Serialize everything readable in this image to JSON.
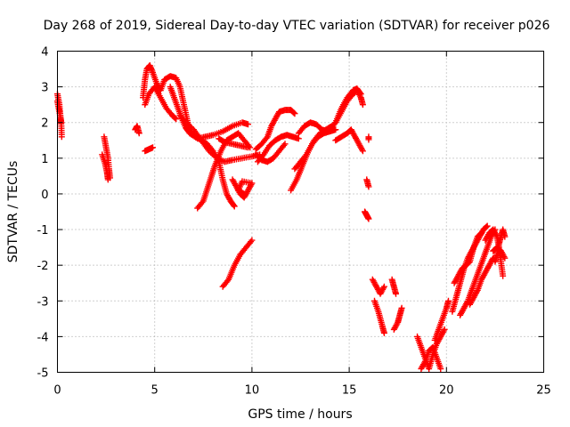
{
  "chart_data": {
    "type": "scatter",
    "title": "Day 268 of 2019, Sidereal Day-to-day VTEC variation (SDTVAR) for receiver p026",
    "xlabel": "GPS time / hours",
    "ylabel": "SDTVAR / TECUs",
    "xlim": [
      0,
      25
    ],
    "ylim": [
      -5,
      4
    ],
    "xticks": [
      0,
      5,
      10,
      15,
      20,
      25
    ],
    "yticks": [
      -5,
      -4,
      -3,
      -2,
      -1,
      0,
      1,
      2,
      3,
      4
    ],
    "grid": true,
    "marker": "+",
    "series": [
      {
        "name": "SDTVAR",
        "color": "#ff0000",
        "tracks": [
          [
            [
              0.0,
              2.8
            ],
            [
              0.1,
              2.5
            ],
            [
              0.15,
              2.2
            ],
            [
              0.2,
              1.9
            ],
            [
              0.22,
              1.6
            ]
          ],
          [
            [
              0.0,
              2.6
            ],
            [
              0.1,
              2.3
            ],
            [
              0.2,
              2.0
            ]
          ],
          [
            [
              2.4,
              1.6
            ],
            [
              2.5,
              1.3
            ],
            [
              2.6,
              1.0
            ],
            [
              2.65,
              0.7
            ],
            [
              2.7,
              0.45
            ]
          ],
          [
            [
              2.3,
              1.1
            ],
            [
              2.45,
              0.85
            ],
            [
              2.55,
              0.6
            ],
            [
              2.6,
              0.4
            ]
          ],
          [
            [
              4.0,
              1.8
            ],
            [
              4.1,
              1.9
            ],
            [
              4.2,
              1.7
            ]
          ],
          [
            [
              4.5,
              1.2
            ],
            [
              4.7,
              1.25
            ],
            [
              4.9,
              1.3
            ]
          ],
          [
            [
              4.4,
              2.7
            ],
            [
              4.5,
              3.2
            ],
            [
              4.6,
              3.5
            ],
            [
              4.75,
              3.6
            ],
            [
              4.9,
              3.4
            ],
            [
              5.1,
              3.1
            ],
            [
              5.3,
              2.9
            ],
            [
              5.5,
              3.2
            ],
            [
              5.8,
              3.3
            ],
            [
              6.1,
              3.25
            ],
            [
              6.3,
              3.0
            ],
            [
              6.5,
              2.5
            ],
            [
              6.7,
              2.0
            ],
            [
              6.9,
              1.7
            ]
          ],
          [
            [
              4.5,
              2.5
            ],
            [
              4.7,
              2.8
            ],
            [
              5.0,
              3.0
            ],
            [
              5.3,
              2.7
            ],
            [
              5.6,
              2.4
            ],
            [
              5.9,
              2.2
            ],
            [
              6.1,
              2.1
            ]
          ],
          [
            [
              5.8,
              3.0
            ],
            [
              6.0,
              2.7
            ],
            [
              6.2,
              2.4
            ],
            [
              6.4,
              2.1
            ],
            [
              6.6,
              1.85
            ],
            [
              6.8,
              1.7
            ],
            [
              7.2,
              1.55
            ],
            [
              7.6,
              1.6
            ],
            [
              8.0,
              1.65
            ],
            [
              8.5,
              1.75
            ],
            [
              9.0,
              1.9
            ],
            [
              9.5,
              2.0
            ],
            [
              9.8,
              1.95
            ]
          ],
          [
            [
              6.3,
              2.2
            ],
            [
              6.6,
              2.0
            ],
            [
              7.0,
              1.8
            ],
            [
              7.4,
              1.5
            ],
            [
              7.8,
              1.2
            ],
            [
              8.2,
              1.0
            ],
            [
              8.6,
              0.9
            ],
            [
              9.0,
              0.95
            ],
            [
              9.5,
              1.0
            ],
            [
              10.0,
              1.05
            ],
            [
              10.4,
              1.1
            ]
          ],
          [
            [
              6.8,
              1.7
            ],
            [
              7.1,
              1.6
            ],
            [
              7.4,
              1.5
            ],
            [
              7.7,
              1.4
            ],
            [
              8.0,
              1.2
            ],
            [
              8.3,
              0.9
            ],
            [
              8.5,
              0.4
            ],
            [
              8.7,
              0.0
            ],
            [
              8.9,
              -0.2
            ],
            [
              9.1,
              -0.35
            ]
          ],
          [
            [
              7.2,
              -0.4
            ],
            [
              7.5,
              -0.2
            ],
            [
              7.8,
              0.3
            ],
            [
              8.1,
              0.8
            ],
            [
              8.4,
              1.2
            ],
            [
              8.7,
              1.5
            ],
            [
              9.0,
              1.6
            ],
            [
              9.3,
              1.7
            ],
            [
              9.6,
              1.5
            ],
            [
              9.9,
              1.3
            ]
          ],
          [
            [
              8.3,
              1.55
            ],
            [
              8.6,
              1.45
            ],
            [
              9.0,
              1.4
            ],
            [
              9.4,
              1.35
            ],
            [
              9.8,
              1.3
            ]
          ],
          [
            [
              9.0,
              0.4
            ],
            [
              9.2,
              0.2
            ],
            [
              9.4,
              0.0
            ],
            [
              9.6,
              -0.1
            ],
            [
              9.8,
              0.1
            ],
            [
              10.0,
              0.3
            ],
            [
              9.5,
              0.35
            ],
            [
              9.3,
              0.1
            ],
            [
              9.6,
              0.0
            ]
          ],
          [
            [
              8.5,
              -2.6
            ],
            [
              8.8,
              -2.4
            ],
            [
              9.1,
              -2.0
            ],
            [
              9.4,
              -1.7
            ],
            [
              9.7,
              -1.5
            ],
            [
              10.0,
              -1.3
            ]
          ],
          [
            [
              10.2,
              1.25
            ],
            [
              10.5,
              1.4
            ],
            [
              10.8,
              1.6
            ],
            [
              11.0,
              1.9
            ],
            [
              11.2,
              2.1
            ],
            [
              11.4,
              2.3
            ],
            [
              11.7,
              2.35
            ],
            [
              12.0,
              2.35
            ],
            [
              12.2,
              2.25
            ]
          ],
          [
            [
              10.3,
              0.9
            ],
            [
              10.6,
              1.1
            ],
            [
              10.9,
              1.35
            ],
            [
              11.2,
              1.5
            ],
            [
              11.5,
              1.6
            ],
            [
              11.8,
              1.65
            ],
            [
              12.1,
              1.6
            ],
            [
              12.4,
              1.55
            ]
          ],
          [
            [
              10.2,
              1.1
            ],
            [
              10.5,
              0.95
            ],
            [
              10.8,
              0.9
            ],
            [
              11.1,
              1.0
            ],
            [
              11.4,
              1.2
            ],
            [
              11.7,
              1.4
            ]
          ],
          [
            [
              12.0,
              0.1
            ],
            [
              12.3,
              0.4
            ],
            [
              12.6,
              0.8
            ],
            [
              12.9,
              1.2
            ],
            [
              13.2,
              1.5
            ],
            [
              13.5,
              1.7
            ],
            [
              13.8,
              1.8
            ],
            [
              14.1,
              1.9
            ]
          ],
          [
            [
              12.2,
              0.7
            ],
            [
              12.5,
              0.9
            ],
            [
              12.8,
              1.1
            ],
            [
              13.1,
              1.4
            ],
            [
              13.4,
              1.6
            ],
            [
              13.7,
              1.7
            ],
            [
              14.0,
              1.75
            ],
            [
              14.3,
              1.8
            ]
          ],
          [
            [
              12.4,
              1.7
            ],
            [
              12.7,
              1.9
            ],
            [
              13.0,
              2.0
            ],
            [
              13.3,
              1.95
            ],
            [
              13.6,
              1.8
            ],
            [
              13.9,
              1.75
            ]
          ],
          [
            [
              14.0,
              1.8
            ],
            [
              14.3,
              2.0
            ],
            [
              14.6,
              2.3
            ],
            [
              14.9,
              2.6
            ],
            [
              15.2,
              2.8
            ],
            [
              15.4,
              2.9
            ],
            [
              15.6,
              2.7
            ],
            [
              15.7,
              2.5
            ]
          ],
          [
            [
              14.3,
              1.5
            ],
            [
              14.6,
              1.6
            ],
            [
              14.9,
              1.7
            ],
            [
              15.1,
              1.8
            ],
            [
              15.3,
              1.6
            ],
            [
              15.5,
              1.4
            ],
            [
              15.7,
              1.2
            ]
          ],
          [
            [
              14.3,
              2.0
            ],
            [
              14.6,
              2.4
            ],
            [
              14.9,
              2.7
            ],
            [
              15.2,
              2.9
            ],
            [
              15.4,
              2.95
            ],
            [
              15.6,
              2.8
            ]
          ],
          [
            [
              16.0,
              1.6
            ]
          ],
          [
            [
              15.9,
              0.4
            ],
            [
              16.0,
              0.2
            ]
          ],
          [
            [
              15.8,
              -0.5
            ],
            [
              15.9,
              -0.6
            ],
            [
              16.0,
              -0.7
            ]
          ],
          [
            [
              16.2,
              -2.4
            ],
            [
              16.4,
              -2.6
            ],
            [
              16.6,
              -2.8
            ],
            [
              16.8,
              -2.6
            ]
          ],
          [
            [
              16.3,
              -3.0
            ],
            [
              16.5,
              -3.3
            ],
            [
              16.7,
              -3.7
            ],
            [
              16.8,
              -3.9
            ]
          ],
          [
            [
              17.2,
              -2.4
            ],
            [
              17.3,
              -2.6
            ],
            [
              17.4,
              -2.8
            ]
          ],
          [
            [
              17.3,
              -3.8
            ],
            [
              17.5,
              -3.6
            ],
            [
              17.6,
              -3.4
            ],
            [
              17.7,
              -3.2
            ]
          ],
          [
            [
              18.5,
              -4.0
            ],
            [
              18.7,
              -4.3
            ],
            [
              18.9,
              -4.6
            ],
            [
              19.1,
              -4.9
            ],
            [
              19.3,
              -4.5
            ],
            [
              19.5,
              -4.2
            ],
            [
              19.7,
              -4.0
            ],
            [
              19.9,
              -3.8
            ]
          ],
          [
            [
              18.7,
              -4.9
            ],
            [
              18.9,
              -4.7
            ],
            [
              19.1,
              -4.4
            ],
            [
              19.3,
              -4.3
            ],
            [
              19.5,
              -4.6
            ],
            [
              19.7,
              -4.9
            ]
          ],
          [
            [
              19.4,
              -4.1
            ],
            [
              19.6,
              -3.8
            ],
            [
              19.8,
              -3.5
            ],
            [
              20.0,
              -3.2
            ],
            [
              20.1,
              -3.0
            ]
          ],
          [
            [
              20.3,
              -3.3
            ],
            [
              20.5,
              -2.9
            ],
            [
              20.7,
              -2.5
            ],
            [
              20.9,
              -2.1
            ],
            [
              21.1,
              -1.8
            ],
            [
              21.3,
              -1.6
            ],
            [
              21.5,
              -1.4
            ],
            [
              21.7,
              -1.2
            ],
            [
              21.9,
              -1.0
            ],
            [
              22.1,
              -0.9
            ]
          ],
          [
            [
              20.4,
              -2.5
            ],
            [
              20.6,
              -2.3
            ],
            [
              20.8,
              -2.1
            ],
            [
              21.0,
              -2.0
            ],
            [
              21.2,
              -1.9
            ],
            [
              21.4,
              -1.5
            ],
            [
              21.6,
              -1.2
            ],
            [
              21.8,
              -1.1
            ]
          ],
          [
            [
              20.7,
              -3.4
            ],
            [
              20.9,
              -3.2
            ],
            [
              21.1,
              -3.0
            ],
            [
              21.3,
              -2.7
            ],
            [
              21.5,
              -2.4
            ],
            [
              21.7,
              -2.1
            ],
            [
              21.9,
              -1.8
            ],
            [
              22.1,
              -1.5
            ],
            [
              22.3,
              -1.2
            ],
            [
              22.5,
              -1.0
            ]
          ],
          [
            [
              21.2,
              -3.1
            ],
            [
              21.4,
              -2.9
            ],
            [
              21.6,
              -2.7
            ],
            [
              21.8,
              -2.4
            ],
            [
              22.0,
              -2.2
            ],
            [
              22.2,
              -2.0
            ],
            [
              22.4,
              -1.8
            ]
          ],
          [
            [
              22.0,
              -1.3
            ],
            [
              22.2,
              -1.1
            ],
            [
              22.4,
              -1.0
            ],
            [
              22.6,
              -1.2
            ],
            [
              22.7,
              -1.5
            ],
            [
              22.8,
              -1.9
            ],
            [
              22.9,
              -2.3
            ]
          ],
          [
            [
              22.5,
              -1.9
            ],
            [
              22.6,
              -1.7
            ],
            [
              22.7,
              -1.4
            ],
            [
              22.8,
              -1.2
            ],
            [
              22.9,
              -1.0
            ],
            [
              23.0,
              -1.2
            ]
          ],
          [
            [
              22.4,
              -1.6
            ],
            [
              22.6,
              -1.5
            ],
            [
              22.8,
              -1.6
            ],
            [
              23.0,
              -1.8
            ]
          ]
        ]
      }
    ]
  }
}
